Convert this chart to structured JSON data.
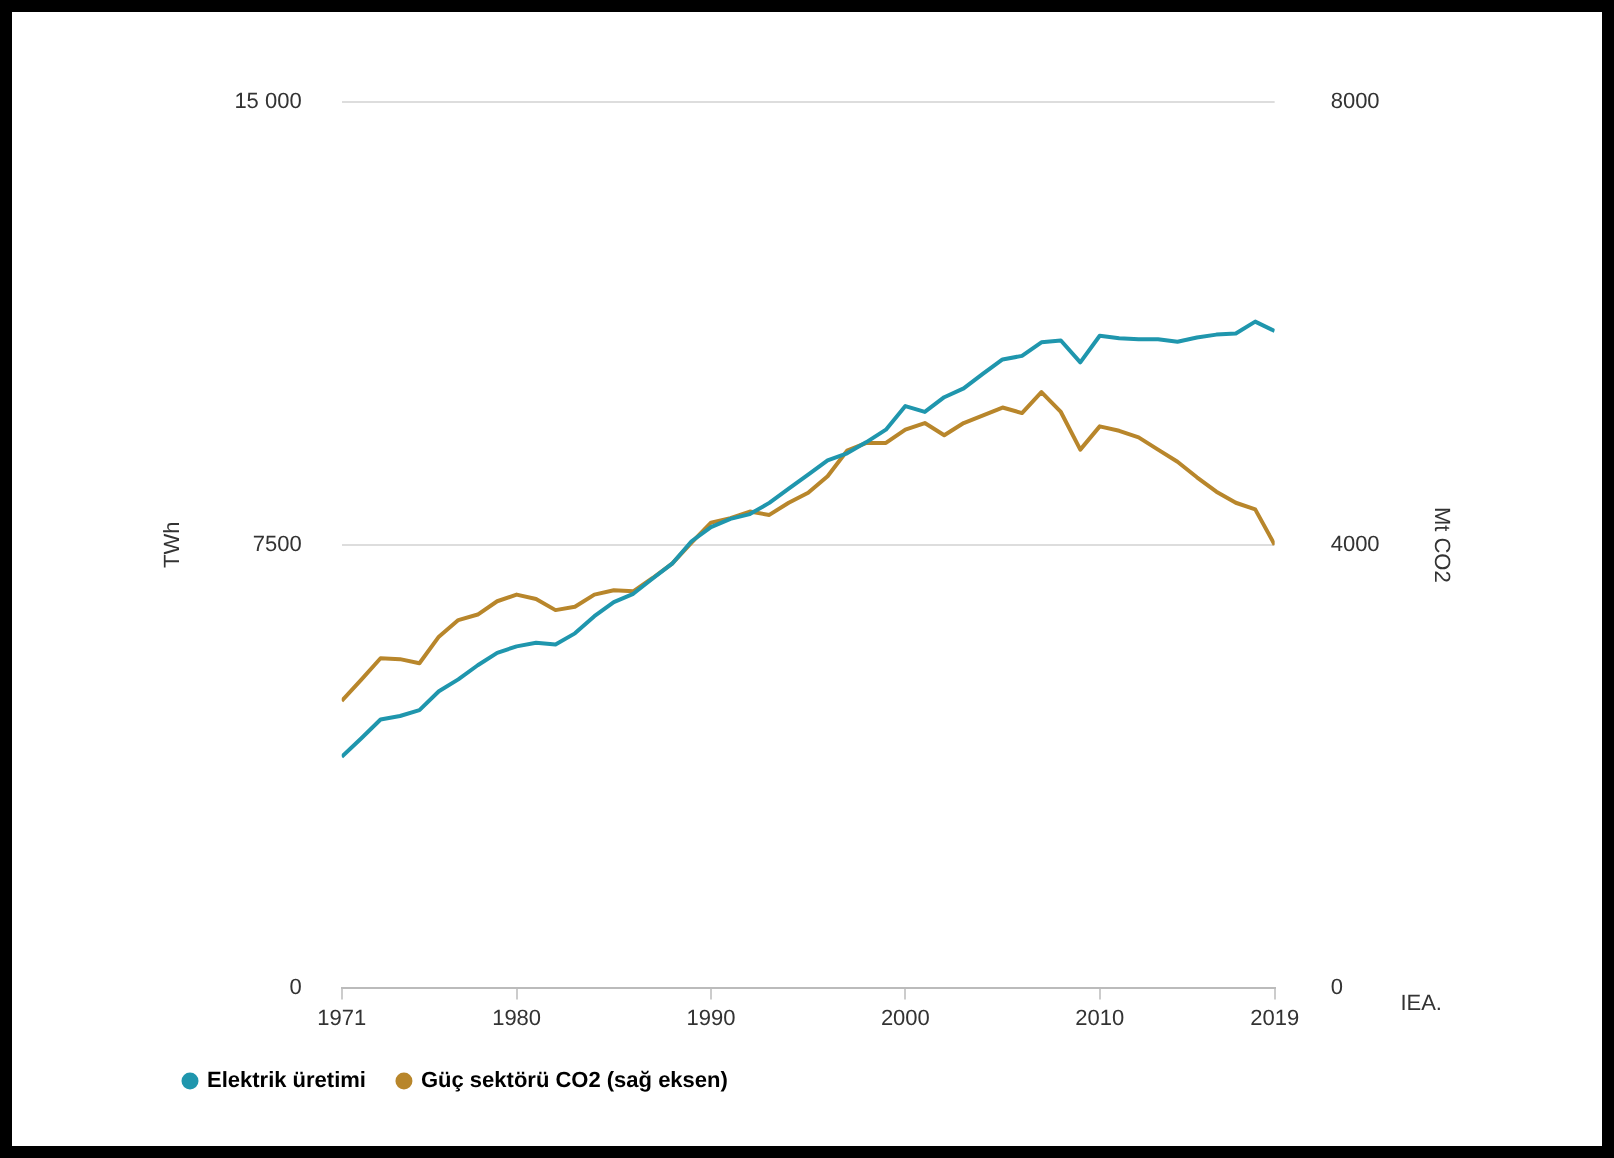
{
  "chart_data": {
    "type": "line",
    "ylabel": "TWh",
    "y2label": "Mt CO2",
    "x": [
      1971,
      1972,
      1973,
      1974,
      1975,
      1976,
      1977,
      1978,
      1979,
      1980,
      1981,
      1982,
      1983,
      1984,
      1985,
      1986,
      1987,
      1988,
      1989,
      1990,
      1991,
      1992,
      1993,
      1994,
      1995,
      1996,
      1997,
      1998,
      1999,
      2000,
      2001,
      2002,
      2003,
      2004,
      2005,
      2006,
      2007,
      2008,
      2009,
      2010,
      2011,
      2012,
      2013,
      2014,
      2015,
      2016,
      2017,
      2018,
      2019
    ],
    "series": [
      {
        "name": "Elektrik üretimi",
        "color": "#1f96ad",
        "values": [
          3910,
          4220,
          4540,
          4600,
          4700,
          5020,
          5220,
          5460,
          5670,
          5780,
          5840,
          5810,
          6000,
          6290,
          6530,
          6670,
          6930,
          7180,
          7560,
          7800,
          7940,
          8020,
          8210,
          8450,
          8690,
          8930,
          9050,
          9240,
          9450,
          9850,
          9750,
          10000,
          10150,
          10400,
          10640,
          10700,
          10930,
          10960,
          10590,
          11040,
          11000,
          10980,
          10980,
          10940,
          11010,
          11060,
          11080,
          11280,
          11120
        ]
      },
      {
        "name": "Güç sektörü CO2 (sağ eksen)",
        "color": "#b8862b",
        "axis": "y2",
        "values": [
          2590,
          2780,
          2975,
          2967,
          2930,
          3170,
          3320,
          3370,
          3490,
          3550,
          3510,
          3410,
          3440,
          3550,
          3590,
          3580,
          3700,
          3830,
          4020,
          4200,
          4240,
          4300,
          4270,
          4380,
          4470,
          4620,
          4850,
          4920,
          4920,
          5040,
          5100,
          4990,
          5100,
          5170,
          5240,
          5190,
          5380,
          5200,
          4860,
          5070,
          5030,
          4970,
          4860,
          4750,
          4610,
          4480,
          4380,
          4320,
          4000
        ]
      }
    ],
    "xlim": [
      1971,
      2019
    ],
    "xticks": [
      1971,
      1980,
      1990,
      2000,
      2010,
      2019
    ],
    "ylim": [
      0,
      15000
    ],
    "yticks": [
      0,
      7500,
      {
        "value": 15000,
        "label": "15 000"
      }
    ],
    "y2lim": [
      0,
      8000
    ],
    "y2ticks": [
      0,
      4000,
      8000
    ],
    "grid": "y",
    "legend": "bottom left",
    "marker": "none",
    "line_style": "solid",
    "annotations": [
      "IEA."
    ]
  }
}
